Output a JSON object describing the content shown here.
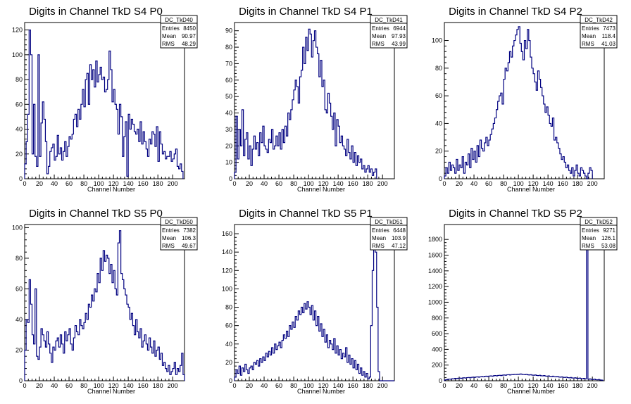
{
  "colors": {
    "line": "#000080",
    "axis": "#000000",
    "background": "#ffffff"
  },
  "chart_data": [
    {
      "type": "histogram",
      "title": "Digits in Channel TkD S4 P0",
      "xlabel": "Channel Number",
      "xlim": [
        0,
        216
      ],
      "ylim": [
        0,
        126
      ],
      "xticks": [
        0,
        20,
        40,
        60,
        80,
        100,
        120,
        140,
        160,
        180,
        200
      ],
      "yticks": [
        0,
        20,
        40,
        60,
        80,
        100,
        120
      ],
      "stats": {
        "name": "DC_TkD40",
        "rows": [
          [
            "Entries",
            "8450"
          ],
          [
            "Mean",
            "90.97"
          ],
          [
            "RMS",
            "48.29"
          ]
        ]
      },
      "binning": {
        "start": 0,
        "width": 2
      },
      "values": [
        12,
        30,
        52,
        120,
        100,
        20,
        60,
        18,
        10,
        100,
        18,
        45,
        62,
        48,
        30,
        4,
        10,
        22,
        25,
        28,
        15,
        18,
        35,
        20,
        25,
        15,
        22,
        30,
        18,
        26,
        34,
        32,
        36,
        48,
        52,
        42,
        56,
        48,
        60,
        72,
        58,
        80,
        85,
        60,
        92,
        80,
        88,
        74,
        95,
        78,
        84,
        90,
        80,
        82,
        70,
        72,
        80,
        103,
        88,
        62,
        72,
        60,
        56,
        36,
        60,
        50,
        18,
        34,
        46,
        2,
        52,
        40,
        48,
        44,
        38,
        36,
        40,
        30,
        46,
        28,
        38,
        30,
        24,
        18,
        32,
        28,
        38,
        36,
        26,
        42,
        14,
        38,
        28,
        20,
        22,
        16,
        18,
        18,
        22,
        14,
        16,
        20,
        24,
        10,
        8,
        12,
        6
      ]
    },
    {
      "type": "histogram",
      "title": "Digits in Channel TkD S4 P1",
      "xlabel": "Channel Number",
      "xlim": [
        0,
        216
      ],
      "ylim": [
        0,
        95
      ],
      "xticks": [
        0,
        20,
        40,
        60,
        80,
        100,
        120,
        140,
        160,
        180,
        200
      ],
      "yticks": [
        0,
        10,
        20,
        30,
        40,
        50,
        60,
        70,
        80,
        90
      ],
      "stats": {
        "name": "DC_TkD41",
        "rows": [
          [
            "Entries",
            "6944"
          ],
          [
            "Mean",
            "97.93"
          ],
          [
            "RMS",
            "43.99"
          ]
        ]
      },
      "binning": {
        "start": 0,
        "width": 2
      },
      "values": [
        4,
        38,
        12,
        30,
        20,
        42,
        14,
        24,
        28,
        12,
        20,
        8,
        18,
        26,
        18,
        22,
        14,
        28,
        22,
        32,
        20,
        18,
        16,
        24,
        22,
        30,
        18,
        20,
        26,
        20,
        28,
        18,
        30,
        22,
        32,
        26,
        40,
        36,
        42,
        48,
        54,
        60,
        56,
        46,
        62,
        66,
        80,
        70,
        86,
        78,
        91,
        88,
        74,
        84,
        90,
        80,
        76,
        62,
        72,
        56,
        60,
        42,
        40,
        52,
        46,
        38,
        30,
        40,
        20,
        36,
        32,
        22,
        26,
        20,
        18,
        14,
        24,
        16,
        12,
        20,
        10,
        16,
        8,
        14,
        10,
        12,
        6,
        8,
        4,
        6,
        8,
        4,
        6,
        2,
        4,
        6
      ]
    },
    {
      "type": "histogram",
      "title": "Digits in Channel TkD S4 P2",
      "xlabel": "Channel Number",
      "xlim": [
        0,
        216
      ],
      "ylim": [
        0,
        113
      ],
      "xticks": [
        0,
        20,
        40,
        60,
        80,
        100,
        120,
        140,
        160,
        180,
        200
      ],
      "yticks": [
        0,
        20,
        40,
        60,
        80,
        100
      ],
      "stats": {
        "name": "DC_TkD42",
        "rows": [
          [
            "Entries",
            "7473"
          ],
          [
            "Mean",
            "118.4"
          ],
          [
            "RMS",
            "41.03"
          ]
        ]
      },
      "binning": {
        "start": 0,
        "width": 2
      },
      "values": [
        2,
        8,
        4,
        12,
        6,
        10,
        8,
        4,
        14,
        6,
        10,
        8,
        16,
        4,
        12,
        10,
        18,
        8,
        22,
        14,
        20,
        12,
        24,
        16,
        28,
        22,
        20,
        26,
        30,
        24,
        28,
        32,
        36,
        40,
        44,
        50,
        56,
        60,
        62,
        54,
        72,
        80,
        78,
        84,
        92,
        88,
        96,
        100,
        104,
        108,
        110,
        98,
        92,
        86,
        100,
        94,
        108,
        100,
        88,
        80,
        76,
        70,
        64,
        78,
        72,
        66,
        60,
        54,
        48,
        52,
        46,
        40,
        38,
        44,
        28,
        30,
        26,
        22,
        18,
        14,
        16,
        12,
        8,
        10,
        6,
        4,
        8,
        2,
        6,
        10,
        4,
        2,
        8,
        6,
        4,
        2,
        0,
        4,
        8,
        6
      ]
    },
    {
      "type": "histogram",
      "title": "Digits in Channel TkD S5 P0",
      "xlabel": "Channel Number",
      "xlim": [
        0,
        216
      ],
      "ylim": [
        0,
        102
      ],
      "xticks": [
        0,
        20,
        40,
        60,
        80,
        100,
        120,
        140,
        160,
        180,
        200
      ],
      "yticks": [
        0,
        20,
        40,
        60,
        80,
        100
      ],
      "stats": {
        "name": "DC_TkD50",
        "rows": [
          [
            "Entries",
            "7382"
          ],
          [
            "Mean",
            "106.3"
          ],
          [
            "RMS",
            "49.67"
          ]
        ]
      },
      "binning": {
        "start": 0,
        "width": 2
      },
      "values": [
        20,
        40,
        38,
        66,
        50,
        30,
        24,
        60,
        16,
        14,
        22,
        34,
        30,
        26,
        22,
        32,
        24,
        18,
        12,
        22,
        20,
        26,
        28,
        22,
        30,
        24,
        18,
        32,
        26,
        30,
        34,
        24,
        20,
        28,
        36,
        32,
        30,
        40,
        36,
        34,
        38,
        44,
        40,
        50,
        48,
        56,
        52,
        60,
        58,
        70,
        64,
        80,
        72,
        85,
        78,
        82,
        80,
        70,
        76,
        64,
        72,
        60,
        56,
        90,
        98,
        70,
        66,
        60,
        56,
        50,
        48,
        40,
        44,
        36,
        30,
        40,
        32,
        28,
        34,
        22,
        26,
        30,
        24,
        20,
        28,
        22,
        18,
        26,
        16,
        20,
        22,
        14,
        18,
        10,
        12,
        8,
        6,
        10,
        4,
        6,
        8,
        12,
        4,
        8,
        6,
        10,
        18,
        4
      ]
    },
    {
      "type": "histogram",
      "title": "Digits in Channel TkD S5 P1",
      "xlabel": "Channel Number",
      "xlim": [
        0,
        216
      ],
      "ylim": [
        0,
        170
      ],
      "xticks": [
        0,
        20,
        40,
        60,
        80,
        100,
        120,
        140,
        160,
        180,
        200
      ],
      "yticks": [
        0,
        20,
        40,
        60,
        80,
        100,
        120,
        140,
        160
      ],
      "stats": {
        "name": "DC_TkD51",
        "rows": [
          [
            "Entries",
            "6448"
          ],
          [
            "Mean",
            "103.9"
          ],
          [
            "RMS",
            "47.12"
          ]
        ]
      },
      "binning": {
        "start": 0,
        "width": 2
      },
      "values": [
        4,
        12,
        8,
        16,
        6,
        14,
        10,
        18,
        12,
        8,
        14,
        16,
        12,
        20,
        18,
        22,
        16,
        24,
        20,
        26,
        22,
        30,
        26,
        32,
        28,
        36,
        30,
        40,
        34,
        38,
        42,
        36,
        44,
        50,
        46,
        54,
        48,
        60,
        56,
        64,
        58,
        70,
        66,
        76,
        72,
        80,
        74,
        84,
        78,
        86,
        80,
        72,
        82,
        66,
        76,
        60,
        70,
        54,
        62,
        48,
        56,
        42,
        50,
        36,
        44,
        40,
        34,
        46,
        30,
        38,
        28,
        34,
        24,
        30,
        26,
        36,
        20,
        28,
        18,
        24,
        14,
        22,
        12,
        18,
        8,
        14,
        6,
        10,
        4,
        8,
        2,
        4,
        60,
        120,
        150,
        140,
        80,
        10,
        0,
        0,
        0,
        0,
        0,
        0,
        0,
        0,
        0,
        0
      ]
    },
    {
      "type": "histogram",
      "title": "Digits in Channel TkD S5 P2",
      "xlabel": "Channel Number",
      "xlim": [
        0,
        216
      ],
      "ylim": [
        0,
        1990
      ],
      "xticks": [
        0,
        20,
        40,
        60,
        80,
        100,
        120,
        140,
        160,
        180,
        200
      ],
      "yticks": [
        0,
        200,
        400,
        600,
        800,
        1000,
        1200,
        1400,
        1600,
        1800
      ],
      "stats": {
        "name": "DC_TkD52",
        "rows": [
          [
            "Entries",
            "9271"
          ],
          [
            "Mean",
            "126.1"
          ],
          [
            "RMS",
            "53.08"
          ]
        ]
      },
      "binning": {
        "start": 0,
        "width": 2
      },
      "values": [
        10,
        14,
        18,
        22,
        20,
        26,
        24,
        30,
        28,
        32,
        34,
        30,
        36,
        38,
        34,
        40,
        42,
        38,
        44,
        46,
        42,
        48,
        50,
        46,
        52,
        54,
        50,
        56,
        58,
        54,
        60,
        62,
        58,
        64,
        66,
        62,
        68,
        70,
        66,
        72,
        74,
        70,
        76,
        78,
        74,
        80,
        78,
        82,
        80,
        84,
        82,
        86,
        84,
        80,
        78,
        82,
        76,
        74,
        78,
        72,
        70,
        74,
        68,
        66,
        70,
        64,
        62,
        66,
        60,
        58,
        62,
        56,
        54,
        58,
        52,
        50,
        54,
        48,
        46,
        50,
        44,
        42,
        46,
        40,
        38,
        42,
        36,
        34,
        38,
        32,
        30,
        34,
        28,
        26,
        30,
        24,
        1700,
        20,
        24,
        18,
        16,
        20,
        14,
        12,
        16,
        10,
        8
      ]
    }
  ]
}
